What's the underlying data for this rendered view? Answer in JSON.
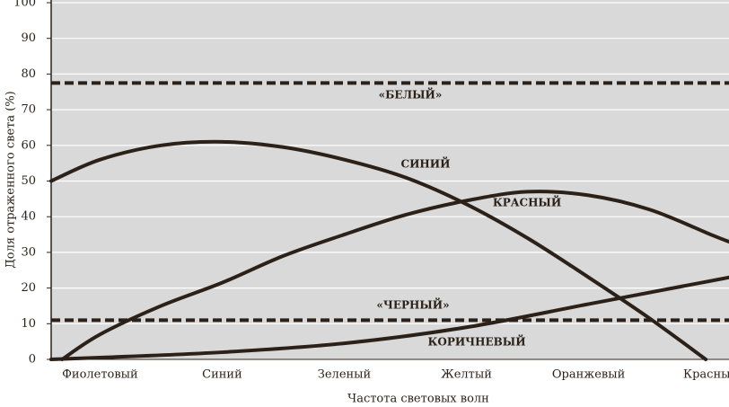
{
  "chart_data": {
    "type": "line",
    "x_label": "Частота световых волн",
    "y_label": "Доля отраженного света (%)",
    "xlim": [
      -0.4,
      5.15
    ],
    "xticks": [
      {
        "value": 0,
        "label": "Фиолетовый"
      },
      {
        "value": 1,
        "label": "Синий"
      },
      {
        "value": 2,
        "label": "Зеленый"
      },
      {
        "value": 3,
        "label": "Желтый"
      },
      {
        "value": 4,
        "label": "Оранжевый"
      },
      {
        "value": 5,
        "label": "Красный"
      }
    ],
    "ylim": [
      0,
      100
    ],
    "yticks": [
      0,
      10,
      20,
      30,
      40,
      50,
      60,
      70,
      80,
      90,
      100
    ],
    "grid": true,
    "series": [
      {
        "name": "СИНИЙ",
        "color": "#2b2118",
        "x": [
          -0.4,
          0,
          0.5,
          1,
          1.5,
          2,
          2.5,
          3,
          3.5,
          4,
          4.5,
          4.96
        ],
        "values": [
          50,
          56,
          60,
          61,
          59.5,
          56,
          51,
          43.5,
          34,
          23,
          11.5,
          0
        ]
      },
      {
        "name": "КРАСНЫЙ",
        "color": "#2b2118",
        "x": [
          -0.31,
          0,
          0.5,
          1,
          1.5,
          2,
          2.5,
          3,
          3.5,
          4,
          4.5,
          5,
          5.15
        ],
        "values": [
          0,
          7,
          15,
          21.5,
          29,
          35,
          40.5,
          44.5,
          47,
          46,
          42,
          35,
          33
        ]
      },
      {
        "name": "КОРИЧНЕВЫЙ",
        "color": "#2b2118",
        "x": [
          -0.4,
          0,
          1,
          2,
          3,
          4,
          5,
          5.15
        ],
        "values": [
          0,
          0.5,
          2,
          4.5,
          9,
          15.5,
          22,
          23
        ]
      }
    ],
    "reference_lines": [
      {
        "name": "«БЕЛЫЙ»",
        "value": 77.5,
        "color": "#2b2118"
      },
      {
        "name": "«ЧЕРНЫЙ»",
        "value": 11,
        "color": "#2b2118"
      }
    ]
  }
}
